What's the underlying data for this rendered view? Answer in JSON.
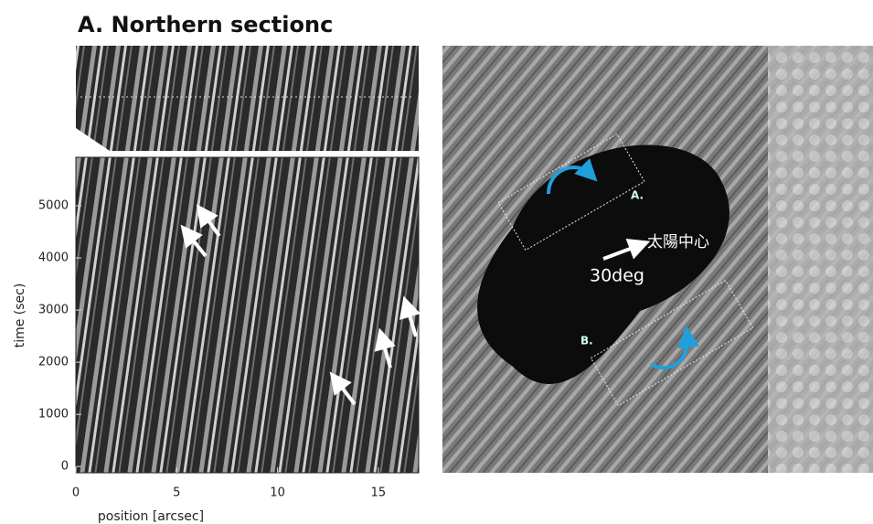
{
  "title": "A. Northern sectionc",
  "plot": {
    "xlabel": "position [arcsec]",
    "ylabel": "time (sec)",
    "xlim": [
      0,
      17
    ],
    "ylim": [
      -120,
      5930
    ],
    "xticks": [
      0,
      5,
      10,
      15
    ],
    "yticks": [
      0,
      1000,
      2000,
      3000,
      4000,
      5000
    ]
  },
  "image": {
    "box_a": "A.",
    "box_b": "B.",
    "direction": "30deg",
    "sun_center": "太陽中心"
  }
}
